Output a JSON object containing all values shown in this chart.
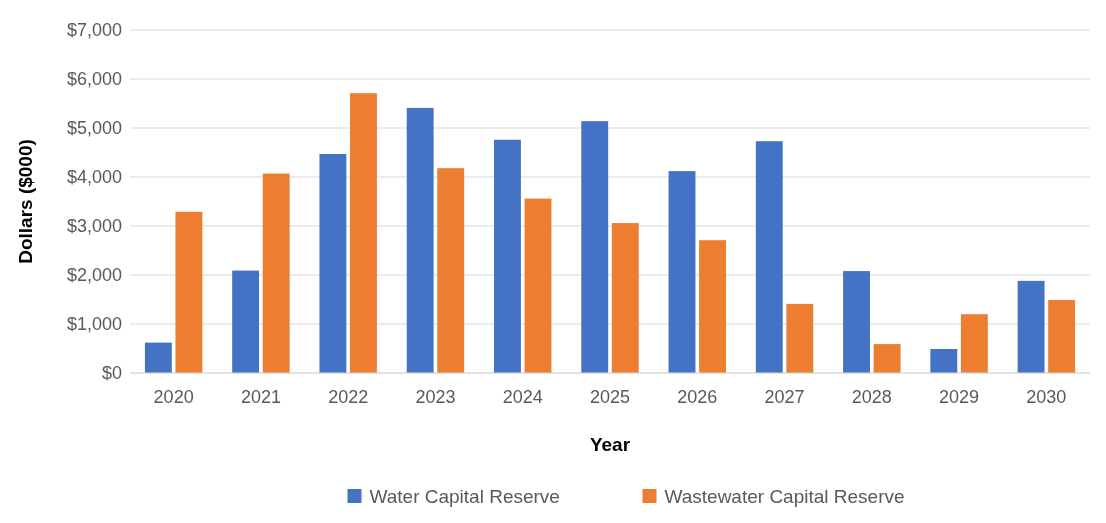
{
  "chart_data": {
    "type": "bar",
    "xlabel": "Year",
    "ylabel": "Dollars ($000)",
    "categories": [
      "2020",
      "2021",
      "2022",
      "2023",
      "2024",
      "2025",
      "2026",
      "2027",
      "2028",
      "2029",
      "2030"
    ],
    "series": [
      {
        "name": "Water Capital Reserve",
        "color": "#4472c4",
        "values": [
          620,
          2090,
          4470,
          5410,
          4760,
          5140,
          4120,
          4730,
          2080,
          490,
          1880
        ]
      },
      {
        "name": "Wastewater Capital Reserve",
        "color": "#ed7d31",
        "values": [
          3290,
          4070,
          5710,
          4180,
          3560,
          3060,
          2710,
          1410,
          590,
          1200,
          1490
        ]
      }
    ],
    "ylim": [
      0,
      7000
    ],
    "yticks": [
      {
        "value": 0,
        "label": "$0"
      },
      {
        "value": 1000,
        "label": "$1,000"
      },
      {
        "value": 2000,
        "label": "$2,000"
      },
      {
        "value": 3000,
        "label": "$3,000"
      },
      {
        "value": 4000,
        "label": "$4,000"
      },
      {
        "value": 5000,
        "label": "$5,000"
      },
      {
        "value": 6000,
        "label": "$6,000"
      },
      {
        "value": 7000,
        "label": "$7,000"
      }
    ],
    "grid": "y",
    "legend": "bottom"
  }
}
